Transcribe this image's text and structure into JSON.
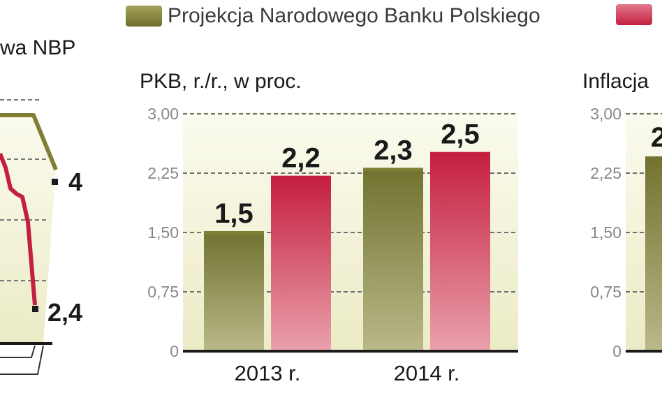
{
  "legend": {
    "items": [
      {
        "label": "Projekcja Narodowego Banku Polskiego",
        "color": "#7f7f35"
      },
      {
        "label": "",
        "color": "#c41f3f"
      }
    ]
  },
  "left_panel": {
    "title_fragment": "wa NBP",
    "end_labels": [
      "4",
      "2,4"
    ]
  },
  "chart_data": [
    {
      "type": "line",
      "title": "wa NBP",
      "partial": true,
      "series": [
        {
          "color": "#7f7f35",
          "end_value_label": "4"
        },
        {
          "color": "#c41f3f",
          "end_value_label": "2,4"
        }
      ]
    },
    {
      "type": "bar",
      "title": "PKB, r./r., w proc.",
      "categories": [
        "2013 r.",
        "2014 r."
      ],
      "series": [
        {
          "color": "#7f7f35",
          "values": [
            1.5,
            2.3
          ],
          "labels": [
            "1,5",
            "2,3"
          ]
        },
        {
          "color": "#c41f3f",
          "values": [
            2.2,
            2.5
          ],
          "labels": [
            "2,2",
            "2,5"
          ]
        }
      ],
      "ylim": [
        0,
        3.0
      ],
      "yticks": [
        "0",
        "0,75",
        "1,50",
        "2,25",
        "3,00"
      ],
      "grid": true
    },
    {
      "type": "bar",
      "title": "Inflacja",
      "partial": true,
      "ylim": [
        0,
        3.0
      ],
      "yticks": [
        "0",
        "0,75",
        "1,50",
        "2,25",
        "3,00"
      ],
      "visible_label_fragment": "2",
      "grid": true
    }
  ]
}
